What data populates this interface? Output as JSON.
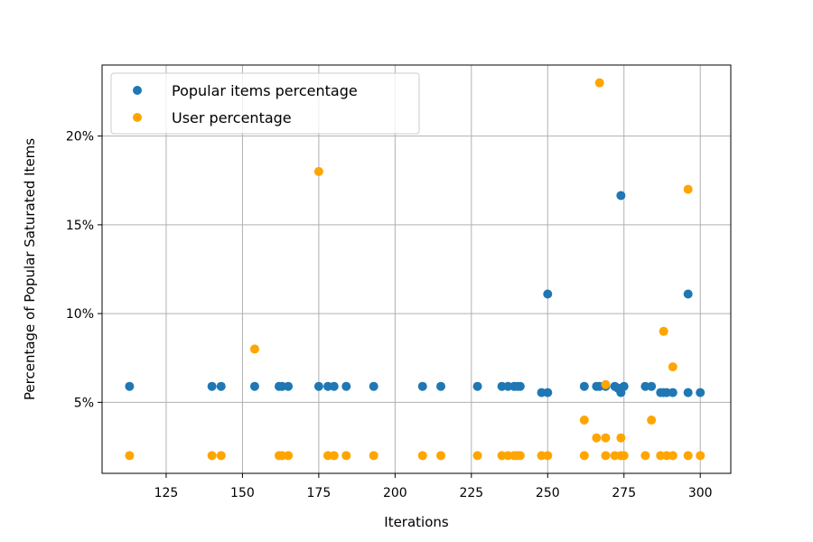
{
  "chart_data": {
    "type": "scatter",
    "title": "",
    "xlabel": "Iterations",
    "ylabel": "Percentage of Popular Saturated Items",
    "xlim": [
      104,
      310
    ],
    "ylim": [
      1.0,
      24.0
    ],
    "x_ticks": [
      125,
      150,
      175,
      200,
      225,
      250,
      275,
      300
    ],
    "x_tick_labels": [
      "125",
      "150",
      "175",
      "200",
      "225",
      "250",
      "275",
      "300"
    ],
    "y_ticks": [
      5,
      10,
      15,
      20
    ],
    "y_tick_labels": [
      "5%",
      "10%",
      "15%",
      "20%"
    ],
    "grid": true,
    "legend_position": "top-left",
    "series": [
      {
        "name": "Popular items percentage",
        "color": "#1f77b4",
        "points": [
          [
            113,
            5.9
          ],
          [
            140,
            5.9
          ],
          [
            143,
            5.9
          ],
          [
            154,
            5.9
          ],
          [
            162,
            5.9
          ],
          [
            163,
            5.9
          ],
          [
            165,
            5.9
          ],
          [
            175,
            5.9
          ],
          [
            178,
            5.9
          ],
          [
            180,
            5.9
          ],
          [
            184,
            5.9
          ],
          [
            193,
            5.9
          ],
          [
            209,
            5.9
          ],
          [
            215,
            5.9
          ],
          [
            227,
            5.9
          ],
          [
            235,
            5.9
          ],
          [
            237,
            5.9
          ],
          [
            239,
            5.9
          ],
          [
            240,
            5.9
          ],
          [
            241,
            5.9
          ],
          [
            248,
            5.55
          ],
          [
            250,
            5.55
          ],
          [
            250,
            11.1
          ],
          [
            262,
            5.9
          ],
          [
            266,
            5.9
          ],
          [
            267,
            5.9
          ],
          [
            269,
            5.9
          ],
          [
            272,
            5.9
          ],
          [
            273,
            5.8
          ],
          [
            274,
            5.55
          ],
          [
            274,
            16.65
          ],
          [
            275,
            5.9
          ],
          [
            282,
            5.9
          ],
          [
            284,
            5.9
          ],
          [
            287,
            5.55
          ],
          [
            288,
            5.55
          ],
          [
            289,
            5.55
          ],
          [
            291,
            5.55
          ],
          [
            296,
            5.55
          ],
          [
            296,
            11.1
          ],
          [
            300,
            5.55
          ]
        ]
      },
      {
        "name": "User percentage",
        "color": "#ffa500",
        "points": [
          [
            113,
            2.0
          ],
          [
            140,
            2.0
          ],
          [
            143,
            2.0
          ],
          [
            154,
            8.0
          ],
          [
            162,
            2.0
          ],
          [
            163,
            2.0
          ],
          [
            165,
            2.0
          ],
          [
            175,
            18.0
          ],
          [
            178,
            2.0
          ],
          [
            180,
            2.0
          ],
          [
            184,
            2.0
          ],
          [
            193,
            2.0
          ],
          [
            209,
            2.0
          ],
          [
            215,
            2.0
          ],
          [
            227,
            2.0
          ],
          [
            235,
            2.0
          ],
          [
            237,
            2.0
          ],
          [
            239,
            2.0
          ],
          [
            240,
            2.0
          ],
          [
            241,
            2.0
          ],
          [
            248,
            2.0
          ],
          [
            250,
            2.0
          ],
          [
            262,
            4.0
          ],
          [
            262,
            2.0
          ],
          [
            266,
            3.0
          ],
          [
            267,
            23.0
          ],
          [
            269,
            3.0
          ],
          [
            269,
            6.0
          ],
          [
            269,
            2.0
          ],
          [
            272,
            2.0
          ],
          [
            274,
            3.0
          ],
          [
            274,
            2.0
          ],
          [
            275,
            2.0
          ],
          [
            282,
            2.0
          ],
          [
            284,
            4.0
          ],
          [
            287,
            2.0
          ],
          [
            288,
            9.0
          ],
          [
            289,
            2.0
          ],
          [
            291,
            7.0
          ],
          [
            291,
            2.0
          ],
          [
            296,
            17.0
          ],
          [
            296,
            2.0
          ],
          [
            300,
            2.0
          ]
        ]
      }
    ]
  }
}
